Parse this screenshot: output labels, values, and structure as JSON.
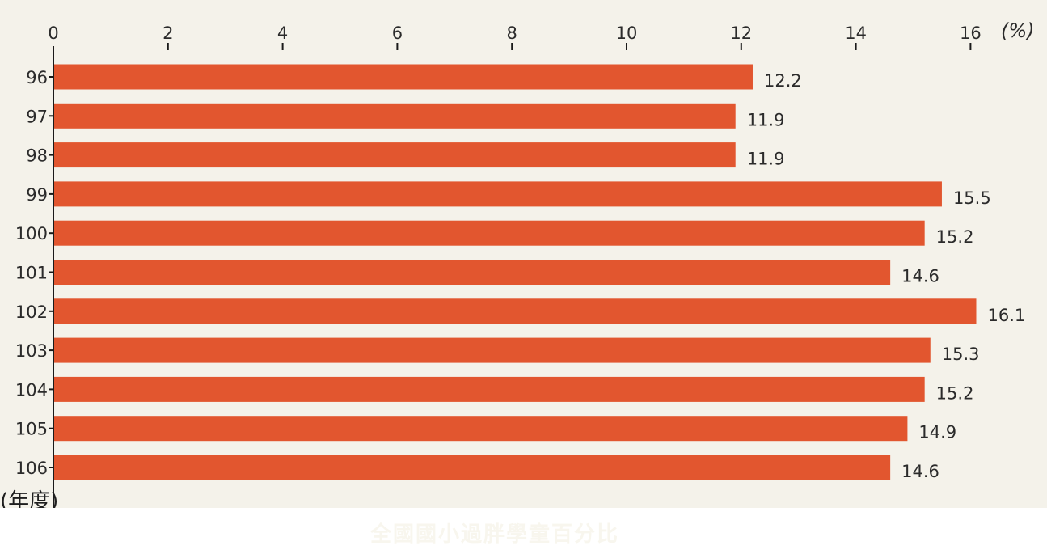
{
  "colors": {
    "background": "#f4f2ea",
    "bar": "#e2562f",
    "axis": "#1a1a1a",
    "caption_text": "#f8f6ee"
  },
  "caption": "全國國小過胖學童百分比",
  "chart_data": {
    "type": "bar",
    "orientation": "horizontal",
    "title": "",
    "xlabel": "",
    "ylabel": "(年度)",
    "unit_label": "(%)",
    "xlim": [
      0,
      16
    ],
    "x_ticks": [
      0,
      2,
      4,
      6,
      8,
      10,
      12,
      14,
      16
    ],
    "x_tick_labels": [
      "0",
      "2",
      "4",
      "6",
      "8",
      "10",
      "12",
      "14",
      "16"
    ],
    "grid": false,
    "categories": [
      "96",
      "97",
      "98",
      "99",
      "100",
      "101",
      "102",
      "103",
      "104",
      "105",
      "106"
    ],
    "values": [
      12.2,
      11.9,
      11.9,
      15.5,
      15.2,
      14.6,
      16.1,
      15.3,
      15.2,
      14.9,
      14.6
    ],
    "value_labels": [
      "12.2",
      "11.9",
      "11.9",
      "15.5",
      "15.2",
      "14.6",
      "16.1",
      "15.3",
      "15.2",
      "14.9",
      "14.6"
    ]
  }
}
